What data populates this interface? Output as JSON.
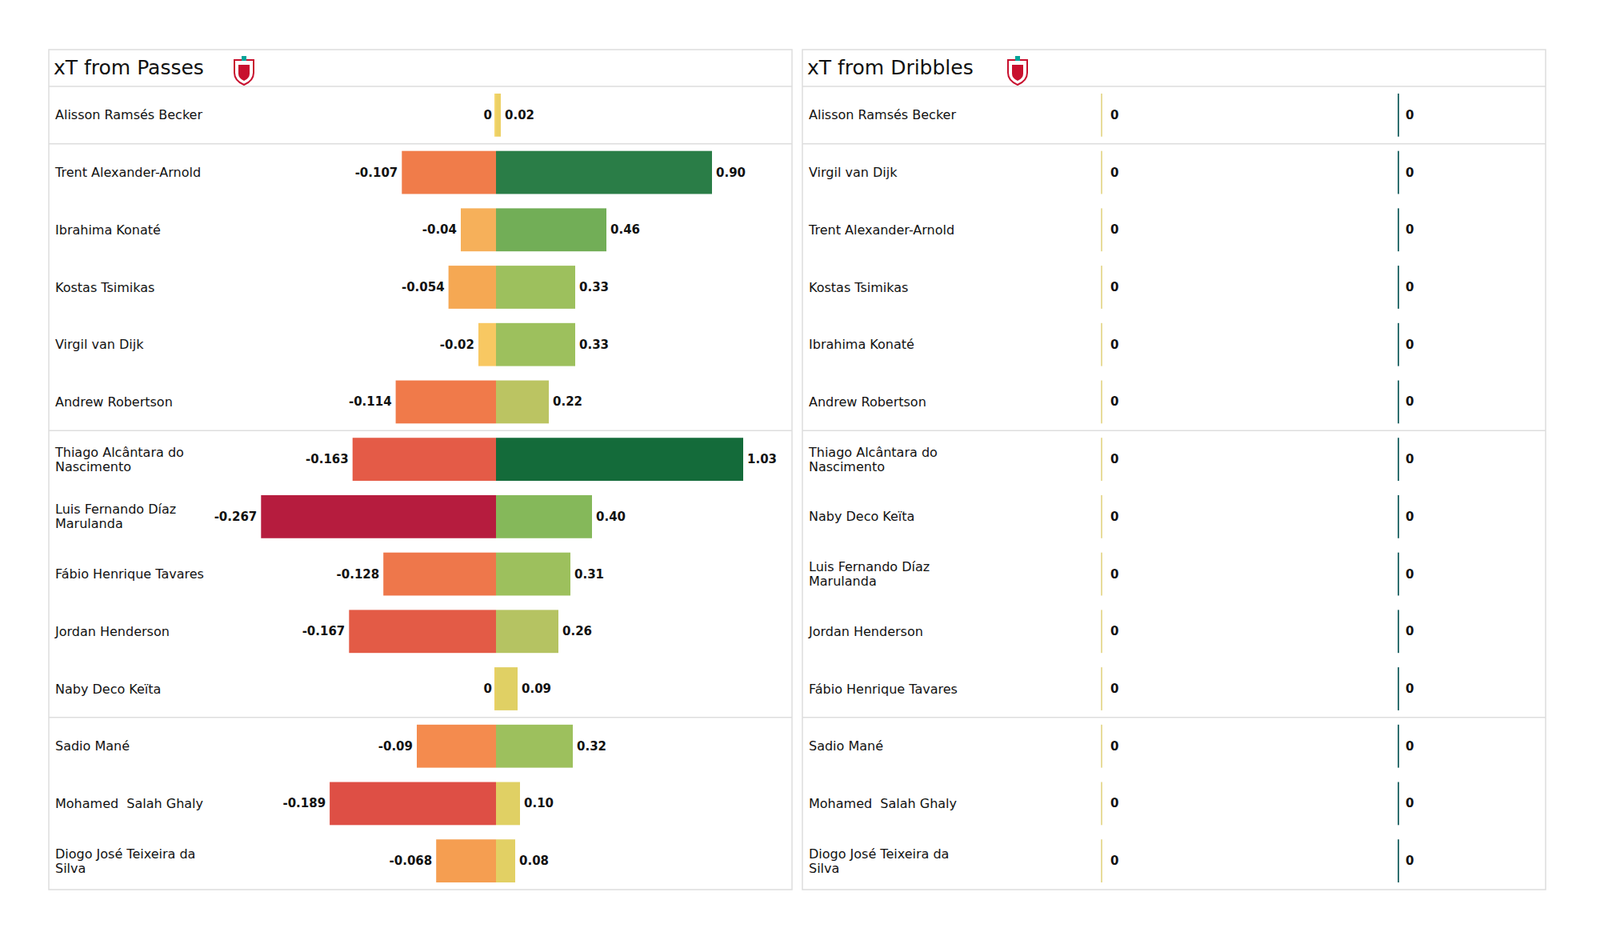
{
  "chart_data": [
    {
      "type": "bar",
      "title": "xT from Passes",
      "orientation": "horizontal",
      "data_labels": true,
      "tick_labels": false,
      "categories": [
        "Alisson Ramsés Becker",
        "Trent Alexander-Arnold",
        "Ibrahima Konaté",
        "Kostas Tsimikas",
        "Virgil van Dijk",
        "Andrew Robertson",
        "Thiago Alcântara do Nascimento",
        "Luis Fernando Díaz Marulanda",
        "Fábio Henrique Tavares",
        "Jordan Henderson",
        "Naby Deco Keïta",
        "Sadio Mané",
        "Mohamed  Salah Ghaly",
        "Diogo José Teixeira da Silva"
      ],
      "series": [
        {
          "values": [
            0,
            -0.107,
            -0.04,
            -0.054,
            -0.02,
            -0.114,
            -0.163,
            -0.267,
            -0.128,
            -0.167,
            0,
            -0.09,
            -0.189,
            -0.068
          ],
          "value_labels": [
            "0",
            "-0.107",
            "-0.04",
            "-0.054",
            "-0.02",
            "-0.114",
            "-0.163",
            "-0.267",
            "-0.128",
            "-0.167",
            "0",
            "-0.09",
            "-0.189",
            "-0.068"
          ],
          "colors": [
            "#f5d76e",
            "#f07c4a",
            "#f6b05a",
            "#f5a853",
            "#f8c862",
            "#f07a4a",
            "#e45b47",
            "#b61c3e",
            "#ee774b",
            "#e35b46",
            "#e9d062",
            "#f48b4e",
            "#de4f45",
            "#f59e51"
          ],
          "xlim": [
            -0.3,
            0
          ]
        },
        {
          "values": [
            0.02,
            0.9,
            0.46,
            0.33,
            0.33,
            0.22,
            1.03,
            0.4,
            0.31,
            0.26,
            0.09,
            0.32,
            0.1,
            0.08
          ],
          "value_labels": [
            "0.02",
            "0.90",
            "0.46",
            "0.33",
            "0.33",
            "0.22",
            "1.03",
            "0.40",
            "0.31",
            "0.26",
            "0.09",
            "0.32",
            "0.10",
            "0.08"
          ],
          "colors": [
            "#ecd064",
            "#2a7d47",
            "#72ae57",
            "#9dc05d",
            "#9dc05d",
            "#bbc462",
            "#146b3a",
            "#85b85a",
            "#9dc05d",
            "#b5c362",
            "#e0d064",
            "#9dc05d",
            "#e0d064",
            "#e2d064"
          ],
          "xlim": [
            0,
            1.1
          ]
        }
      ]
    },
    {
      "type": "bar",
      "title": "xT from Dribbles",
      "orientation": "horizontal",
      "data_labels": true,
      "tick_labels": false,
      "categories": [
        "Alisson Ramsés Becker",
        "Virgil van Dijk",
        "Trent Alexander-Arnold",
        "Kostas Tsimikas",
        "Ibrahima Konaté",
        "Andrew Robertson",
        "Thiago Alcântara do Nascimento",
        "Naby Deco Keïta",
        "Luis Fernando Díaz Marulanda",
        "Jordan Henderson",
        "Fábio Henrique Tavares",
        "Sadio Mané",
        "Mohamed  Salah Ghaly",
        "Diogo José Teixeira da Silva"
      ],
      "series": [
        {
          "values": [
            0,
            0,
            0,
            0,
            0,
            0,
            0,
            0,
            0,
            0,
            0,
            0,
            0,
            0
          ],
          "color": "#e8dc9a",
          "xlim": [
            -1,
            0
          ]
        },
        {
          "values": [
            0,
            0,
            0,
            0,
            0,
            0,
            0,
            0,
            0,
            0,
            0,
            0,
            0,
            0
          ],
          "color": "#2f6f6f",
          "xlim": [
            0,
            1
          ]
        }
      ]
    }
  ]
}
